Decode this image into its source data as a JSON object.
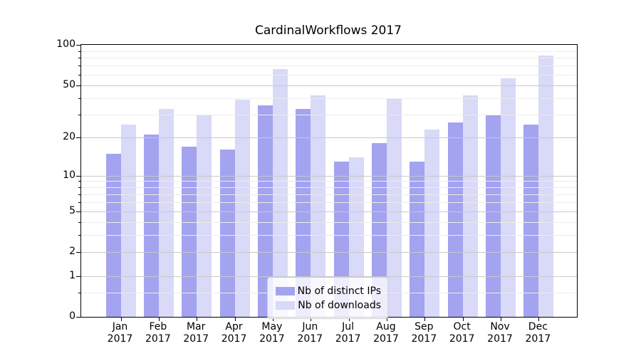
{
  "chart_data": {
    "type": "bar",
    "title": "CardinalWorkflows 2017",
    "categories": [
      "Jan",
      "Feb",
      "Mar",
      "Apr",
      "May",
      "Jun",
      "Jul",
      "Aug",
      "Sep",
      "Oct",
      "Nov",
      "Dec"
    ],
    "category_year": "2017",
    "series": [
      {
        "name": "Nb of distinct IPs",
        "color": "#a3a3ef",
        "values": [
          15,
          21,
          17,
          16,
          35,
          33,
          13,
          18,
          13,
          26,
          30,
          25
        ]
      },
      {
        "name": "Nb of downloads",
        "color": "#d9d9f8",
        "values": [
          25,
          33,
          30,
          39,
          66,
          42,
          14,
          40,
          23,
          42,
          56,
          83
        ]
      }
    ],
    "xlabel": "",
    "ylabel": "",
    "y_axis": {
      "scale": "log1p",
      "min": 0,
      "max": 100,
      "major_ticks": [
        0,
        1,
        2,
        5,
        10,
        20,
        50,
        100
      ],
      "minor_ticks": [
        0.5,
        3,
        4,
        6,
        7,
        8,
        9,
        30,
        40,
        60,
        70,
        80,
        90
      ]
    },
    "grid": "on",
    "legend_position": "lower center (inside plot)"
  }
}
